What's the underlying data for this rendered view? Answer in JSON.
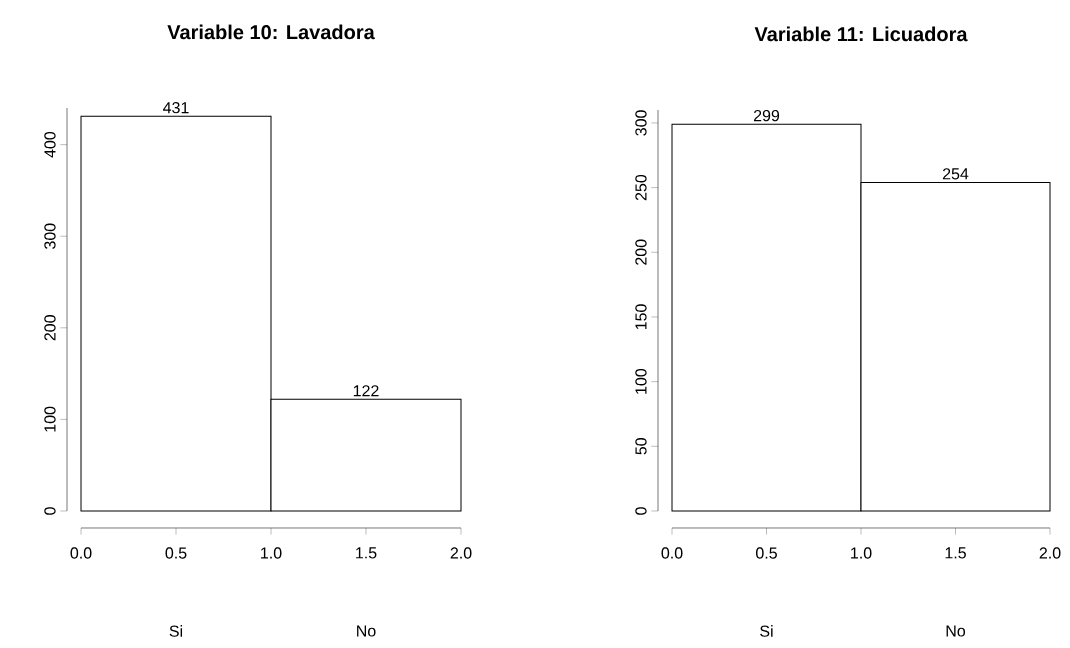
{
  "chart_data": [
    {
      "type": "histogram",
      "title": "Variable 10: Lavadora",
      "bins": [
        0,
        1,
        2
      ],
      "values": [
        431,
        122
      ],
      "color": "#ffffff",
      "xlim": [
        0,
        2
      ],
      "xticks": [
        {
          "value": 0,
          "label": "0.0"
        },
        {
          "value": 0.5,
          "label": "0.5"
        },
        {
          "value": 1,
          "label": "1.0"
        },
        {
          "value": 1.5,
          "label": "1.5"
        },
        {
          "value": 2,
          "label": "2.0"
        }
      ],
      "ylim": [
        0,
        440
      ],
      "yticks": [
        0,
        100,
        200,
        300,
        400
      ],
      "data_labels": true,
      "annotations": [
        "Si",
        "No"
      ]
    },
    {
      "type": "histogram",
      "title": "Variable 11: Licuadora",
      "bins": [
        0,
        1,
        2
      ],
      "values": [
        299,
        254
      ],
      "color": "#ffffff",
      "xlim": [
        0,
        2
      ],
      "xticks": [
        {
          "value": 0,
          "label": "0.0"
        },
        {
          "value": 0.5,
          "label": "0.5"
        },
        {
          "value": 1,
          "label": "1.0"
        },
        {
          "value": 1.5,
          "label": "1.5"
        },
        {
          "value": 2,
          "label": "2.0"
        }
      ],
      "ylim": [
        0,
        310
      ],
      "yticks": [
        0,
        50,
        100,
        150,
        200,
        250,
        300
      ],
      "data_labels": true,
      "annotations": [
        "Si",
        "No"
      ]
    }
  ]
}
